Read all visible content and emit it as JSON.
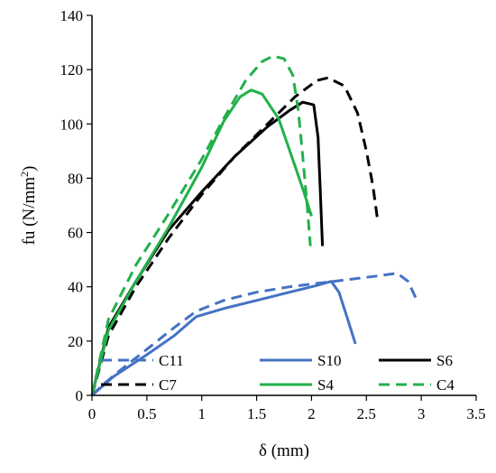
{
  "chart_data": {
    "type": "line",
    "title": "",
    "xlabel": "δ (mm)",
    "ylabel_parts": {
      "main": "fu (N/mm",
      "sup": "2",
      "close": ")"
    },
    "xlim": [
      0,
      3.5
    ],
    "ylim": [
      0,
      140
    ],
    "xticks": [
      0,
      0.5,
      1,
      1.5,
      2,
      2.5,
      3,
      3.5
    ],
    "xtick_labels": [
      "0",
      "0.5",
      "1",
      "1.5",
      "2",
      "2.5",
      "3",
      "3.5"
    ],
    "yticks": [
      0,
      20,
      40,
      60,
      80,
      100,
      120,
      140
    ],
    "ytick_labels": [
      "0",
      "20",
      "40",
      "60",
      "80",
      "100",
      "120",
      "140"
    ],
    "grid": false,
    "legend_position": "bottom",
    "series": [
      {
        "name": "C11",
        "color": "#4472C4",
        "dash": true,
        "points": [
          [
            0,
            0
          ],
          [
            0.1,
            4
          ],
          [
            0.25,
            9
          ],
          [
            0.5,
            17
          ],
          [
            0.75,
            25
          ],
          [
            0.95,
            31
          ],
          [
            1.2,
            35
          ],
          [
            1.5,
            38
          ],
          [
            1.8,
            40
          ],
          [
            2.1,
            41.5
          ],
          [
            2.4,
            43
          ],
          [
            2.6,
            44
          ],
          [
            2.78,
            45
          ],
          [
            2.88,
            42
          ],
          [
            2.96,
            35
          ]
        ]
      },
      {
        "name": "S10",
        "color": "#4472C4",
        "dash": false,
        "points": [
          [
            0,
            0
          ],
          [
            0.2,
            7
          ],
          [
            0.5,
            15
          ],
          [
            0.75,
            22
          ],
          [
            0.95,
            29
          ],
          [
            1.2,
            32
          ],
          [
            1.5,
            35
          ],
          [
            1.8,
            38
          ],
          [
            2.05,
            40.5
          ],
          [
            2.18,
            42
          ],
          [
            2.25,
            38
          ],
          [
            2.33,
            28
          ],
          [
            2.4,
            19
          ]
        ]
      },
      {
        "name": "S6",
        "color": "#000000",
        "dash": false,
        "points": [
          [
            0,
            0
          ],
          [
            0.15,
            25
          ],
          [
            0.4,
            42
          ],
          [
            0.7,
            61
          ],
          [
            1,
            75
          ],
          [
            1.3,
            88
          ],
          [
            1.6,
            99
          ],
          [
            1.8,
            105
          ],
          [
            1.92,
            108
          ],
          [
            2.02,
            107
          ],
          [
            2.06,
            95
          ],
          [
            2.08,
            75
          ],
          [
            2.1,
            55
          ]
        ]
      },
      {
        "name": "C7",
        "color": "#000000",
        "dash": true,
        "points": [
          [
            0,
            0
          ],
          [
            0.15,
            22
          ],
          [
            0.4,
            40
          ],
          [
            0.7,
            58
          ],
          [
            1,
            74
          ],
          [
            1.3,
            88
          ],
          [
            1.6,
            100
          ],
          [
            1.85,
            110
          ],
          [
            2.05,
            116
          ],
          [
            2.15,
            117
          ],
          [
            2.3,
            114
          ],
          [
            2.42,
            104
          ],
          [
            2.5,
            90
          ],
          [
            2.56,
            77
          ],
          [
            2.6,
            65
          ]
        ]
      },
      {
        "name": "S4",
        "color": "#22B04B",
        "dash": false,
        "points": [
          [
            0,
            0
          ],
          [
            0.15,
            24
          ],
          [
            0.4,
            42
          ],
          [
            0.7,
            62
          ],
          [
            1,
            84
          ],
          [
            1.2,
            101
          ],
          [
            1.35,
            110
          ],
          [
            1.45,
            112.5
          ],
          [
            1.55,
            111
          ],
          [
            1.7,
            102
          ],
          [
            1.82,
            88
          ],
          [
            1.93,
            75
          ],
          [
            2,
            66
          ]
        ]
      },
      {
        "name": "C4",
        "color": "#22B04B",
        "dash": true,
        "points": [
          [
            0,
            0
          ],
          [
            0.15,
            28
          ],
          [
            0.4,
            48
          ],
          [
            0.7,
            67
          ],
          [
            1,
            87
          ],
          [
            1.2,
            102
          ],
          [
            1.4,
            116
          ],
          [
            1.55,
            123
          ],
          [
            1.65,
            125
          ],
          [
            1.75,
            124
          ],
          [
            1.83,
            118
          ],
          [
            1.88,
            105
          ],
          [
            1.92,
            88
          ],
          [
            1.96,
            70
          ],
          [
            1.99,
            55
          ]
        ]
      }
    ]
  }
}
